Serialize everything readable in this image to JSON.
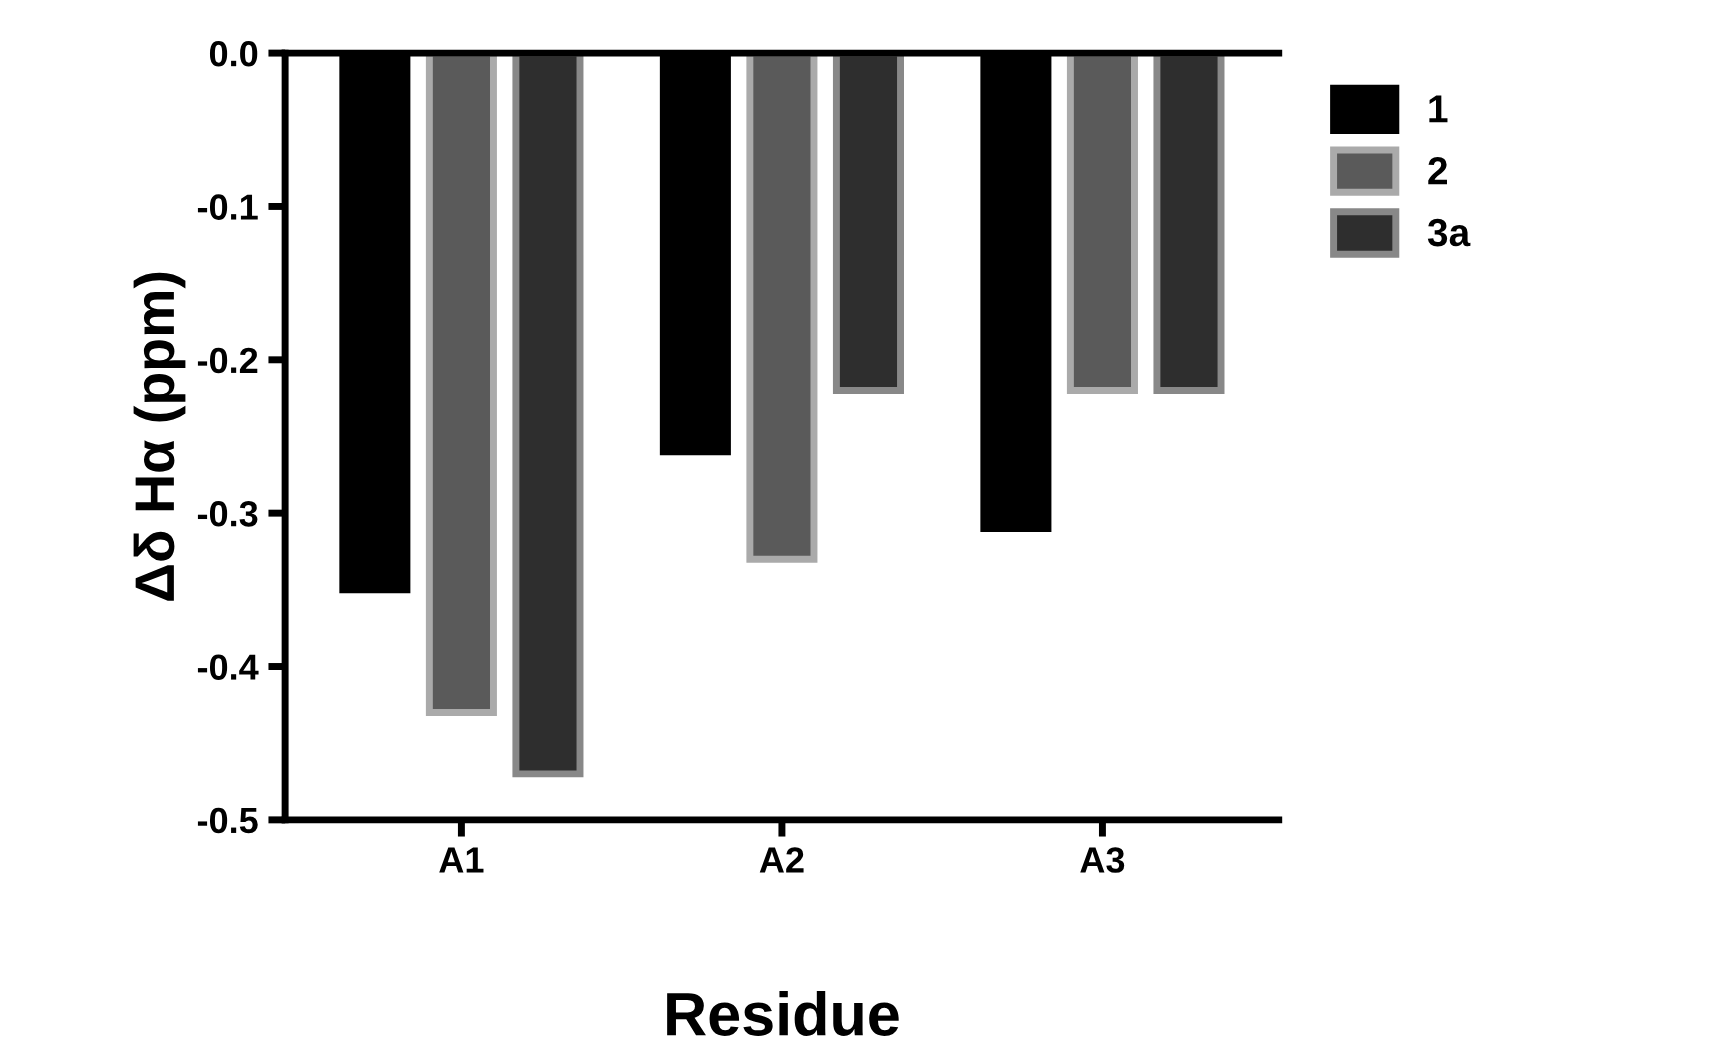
{
  "chart_data": {
    "type": "bar",
    "xlabel": "Residue",
    "ylabel": "Δδ Hα (ppm)",
    "categories": [
      "A1",
      "A2",
      "A3"
    ],
    "series": [
      {
        "name": "1",
        "color": "#000000",
        "values": [
          -0.35,
          -0.26,
          -0.31
        ]
      },
      {
        "name": "2",
        "color": "#5a5a5a",
        "values": [
          -0.43,
          -0.33,
          -0.22
        ]
      },
      {
        "name": "3a",
        "color": "#2e2e2e",
        "values": [
          -0.47,
          -0.22,
          -0.22
        ]
      }
    ],
    "ylim": [
      -0.5,
      0.0
    ],
    "yticks": [
      {
        "value": 0,
        "label": "0.0"
      },
      -0.1,
      -0.2,
      -0.3,
      -0.4,
      -0.5
    ],
    "grid": false,
    "legend": "right"
  }
}
